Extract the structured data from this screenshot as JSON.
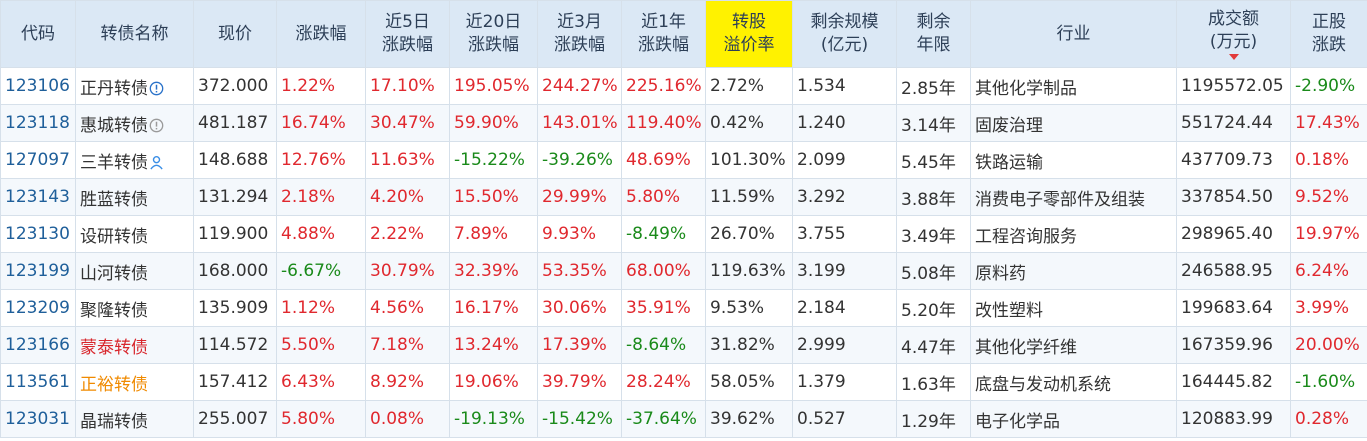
{
  "colors": {
    "up": "#e0282e",
    "down": "#1a8a1a",
    "header_bg": "#dbe8f5",
    "highlight": "#fff200"
  },
  "headers": [
    {
      "key": "code",
      "l1": "代码"
    },
    {
      "key": "name",
      "l1": "转债名称"
    },
    {
      "key": "price",
      "l1": "现价"
    },
    {
      "key": "chg",
      "l1": "涨跌幅"
    },
    {
      "key": "chg5",
      "l1": "近5日",
      "l2": "涨跌幅"
    },
    {
      "key": "chg20",
      "l1": "近20日",
      "l2": "涨跌幅"
    },
    {
      "key": "chg3m",
      "l1": "近3月",
      "l2": "涨跌幅"
    },
    {
      "key": "chg1y",
      "l1": "近1年",
      "l2": "涨跌幅"
    },
    {
      "key": "premium",
      "l1": "转股",
      "l2": "溢价率",
      "highlight": true
    },
    {
      "key": "remain_size",
      "l1": "剩余规模",
      "l2": "(亿元)"
    },
    {
      "key": "remain_years",
      "l1": "剩余",
      "l2": "年限"
    },
    {
      "key": "industry",
      "l1": "行业"
    },
    {
      "key": "turnover",
      "l1": "成交额",
      "l2": "(万元)",
      "sort": "desc"
    },
    {
      "key": "stock_chg",
      "l1": "正股",
      "l2": "涨跌"
    }
  ],
  "rows": [
    {
      "code": "123106",
      "name": "正丹转债",
      "name_color": "normal",
      "icon": "info-circle-icon",
      "price": "372.000",
      "chg": "1.22%",
      "chg5": "17.10%",
      "chg20": "195.05%",
      "chg3m": "244.27%",
      "chg1y": "225.16%",
      "premium": "2.72%",
      "remain_size": "1.534",
      "remain_years": "2.85年",
      "industry": "其他化学制品",
      "turnover": "1195572.05",
      "stock_chg": "-2.90%"
    },
    {
      "code": "123118",
      "name": "惠城转债",
      "name_color": "normal",
      "icon": "info-circle-grey-icon",
      "price": "481.187",
      "chg": "16.74%",
      "chg5": "30.47%",
      "chg20": "59.90%",
      "chg3m": "143.01%",
      "chg1y": "119.40%",
      "premium": "0.42%",
      "remain_size": "1.240",
      "remain_years": "3.14年",
      "industry": "固废治理",
      "turnover": "551724.44",
      "stock_chg": "17.43%"
    },
    {
      "code": "127097",
      "name": "三羊转债",
      "name_color": "normal",
      "icon": "person-icon",
      "price": "148.688",
      "chg": "12.76%",
      "chg5": "11.63%",
      "chg20": "-15.22%",
      "chg3m": "-39.26%",
      "chg1y": "48.69%",
      "premium": "101.30%",
      "remain_size": "2.099",
      "remain_years": "5.45年",
      "industry": "铁路运输",
      "turnover": "437709.73",
      "stock_chg": "0.18%"
    },
    {
      "code": "123143",
      "name": "胜蓝转债",
      "name_color": "normal",
      "icon": "",
      "price": "131.294",
      "chg": "2.18%",
      "chg5": "4.20%",
      "chg20": "15.50%",
      "chg3m": "29.99%",
      "chg1y": "5.80%",
      "premium": "11.59%",
      "remain_size": "3.292",
      "remain_years": "3.88年",
      "industry": "消费电子零部件及组装",
      "turnover": "337854.50",
      "stock_chg": "9.52%"
    },
    {
      "code": "123130",
      "name": "设研转债",
      "name_color": "normal",
      "icon": "",
      "price": "119.900",
      "chg": "4.88%",
      "chg5": "2.22%",
      "chg20": "7.89%",
      "chg3m": "9.93%",
      "chg1y": "-8.49%",
      "premium": "26.70%",
      "remain_size": "3.755",
      "remain_years": "3.49年",
      "industry": "工程咨询服务",
      "turnover": "298965.40",
      "stock_chg": "19.97%"
    },
    {
      "code": "123199",
      "name": "山河转债",
      "name_color": "normal",
      "icon": "",
      "price": "168.000",
      "chg": "-6.67%",
      "chg5": "30.79%",
      "chg20": "32.39%",
      "chg3m": "53.35%",
      "chg1y": "68.00%",
      "premium": "119.63%",
      "remain_size": "3.199",
      "remain_years": "5.08年",
      "industry": "原料药",
      "turnover": "246588.95",
      "stock_chg": "6.24%"
    },
    {
      "code": "123209",
      "name": "聚隆转债",
      "name_color": "normal",
      "icon": "",
      "price": "135.909",
      "chg": "1.12%",
      "chg5": "4.56%",
      "chg20": "16.17%",
      "chg3m": "30.06%",
      "chg1y": "35.91%",
      "premium": "9.53%",
      "remain_size": "2.184",
      "remain_years": "5.20年",
      "industry": "改性塑料",
      "turnover": "199683.64",
      "stock_chg": "3.99%"
    },
    {
      "code": "123166",
      "name": "蒙泰转债",
      "name_color": "red",
      "icon": "",
      "price": "114.572",
      "chg": "5.50%",
      "chg5": "7.18%",
      "chg20": "13.24%",
      "chg3m": "17.39%",
      "chg1y": "-8.64%",
      "premium": "31.82%",
      "remain_size": "2.999",
      "remain_years": "4.47年",
      "industry": "其他化学纤维",
      "turnover": "167359.96",
      "stock_chg": "20.00%"
    },
    {
      "code": "113561",
      "name": "正裕转债",
      "name_color": "orange",
      "icon": "",
      "price": "157.412",
      "chg": "6.43%",
      "chg5": "8.92%",
      "chg20": "19.06%",
      "chg3m": "39.79%",
      "chg1y": "28.24%",
      "premium": "58.05%",
      "remain_size": "1.379",
      "remain_years": "1.63年",
      "industry": "底盘与发动机系统",
      "turnover": "164445.82",
      "stock_chg": "-1.60%"
    },
    {
      "code": "123031",
      "name": "晶瑞转债",
      "name_color": "normal",
      "icon": "",
      "price": "255.007",
      "chg": "5.80%",
      "chg5": "0.08%",
      "chg20": "-19.13%",
      "chg3m": "-15.42%",
      "chg1y": "-37.64%",
      "premium": "39.62%",
      "remain_size": "0.527",
      "remain_years": "1.29年",
      "industry": "电子化学品",
      "turnover": "120883.99",
      "stock_chg": "0.28%"
    }
  ]
}
